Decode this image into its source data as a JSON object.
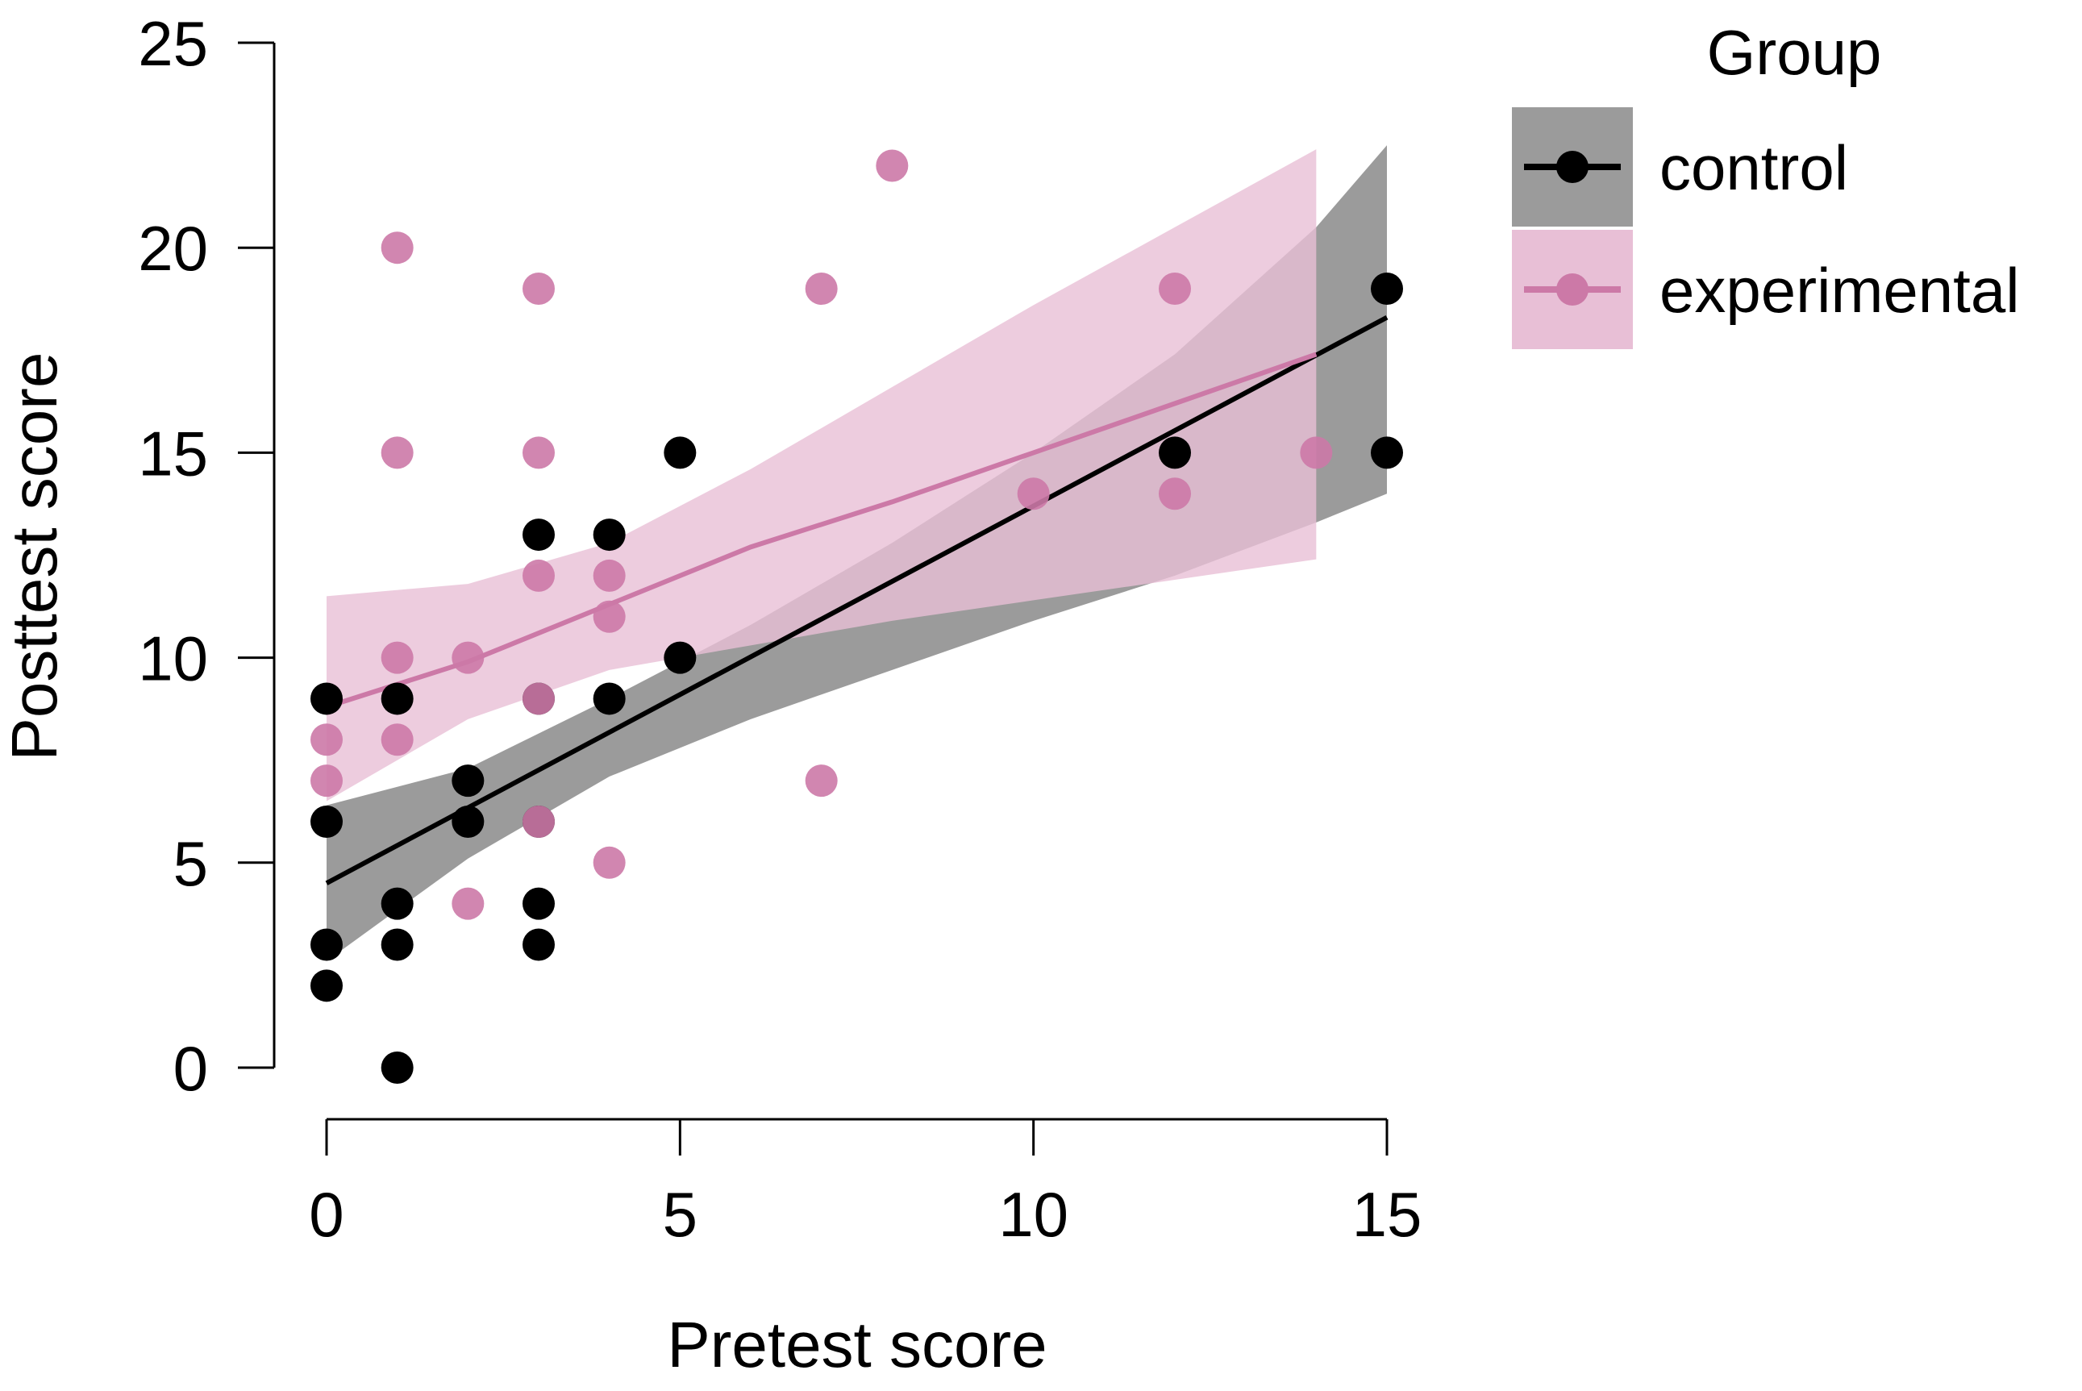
{
  "chart_data": {
    "type": "scatter",
    "xlabel": "Pretest score",
    "ylabel": "Posttest score",
    "xlim": [
      0,
      15
    ],
    "ylim": [
      0,
      25
    ],
    "x_ticks": [
      "0",
      "5",
      "10",
      "15"
    ],
    "y_ticks": [
      "0",
      "5",
      "10",
      "15",
      "20",
      "25"
    ],
    "grid": false,
    "legend": {
      "title": "Group",
      "position": "top-right outside",
      "entries": [
        "control",
        "experimental"
      ]
    },
    "series": [
      {
        "name": "control",
        "color": "#000000",
        "band_color": "#7a7a7a",
        "points": [
          [
            0,
            9
          ],
          [
            0,
            6
          ],
          [
            0,
            3
          ],
          [
            0,
            2
          ],
          [
            1,
            9
          ],
          [
            1,
            4
          ],
          [
            1,
            3
          ],
          [
            1,
            0
          ],
          [
            2,
            7
          ],
          [
            2,
            6
          ],
          [
            3,
            13
          ],
          [
            3,
            9
          ],
          [
            3,
            6
          ],
          [
            3,
            4
          ],
          [
            3,
            3
          ],
          [
            4,
            13
          ],
          [
            4,
            9
          ],
          [
            5,
            15
          ],
          [
            5,
            10
          ],
          [
            12,
            15
          ],
          [
            15,
            19
          ],
          [
            15,
            15
          ]
        ],
        "fit": {
          "x": [
            0,
            15
          ],
          "y": [
            4.5,
            18.3
          ]
        },
        "band": {
          "x": [
            0,
            2,
            4,
            6,
            8,
            10,
            12,
            14,
            15
          ],
          "lower": [
            2.6,
            5.1,
            7.1,
            8.5,
            9.7,
            10.9,
            12.0,
            13.3,
            14.0
          ],
          "upper": [
            6.4,
            7.3,
            9.0,
            10.8,
            12.8,
            15.0,
            17.4,
            20.5,
            22.5
          ]
        }
      },
      {
        "name": "experimental",
        "color": "#cc79a7",
        "band_color": "#e8bfd6",
        "points": [
          [
            0,
            8
          ],
          [
            0,
            7
          ],
          [
            1,
            20
          ],
          [
            1,
            15
          ],
          [
            1,
            10
          ],
          [
            1,
            8
          ],
          [
            2,
            10
          ],
          [
            2,
            4
          ],
          [
            3,
            19
          ],
          [
            3,
            15
          ],
          [
            3,
            12
          ],
          [
            3,
            9
          ],
          [
            3,
            6
          ],
          [
            4,
            12
          ],
          [
            4,
            11
          ],
          [
            4,
            5
          ],
          [
            7,
            19
          ],
          [
            7,
            7
          ],
          [
            8,
            22
          ],
          [
            10,
            14
          ],
          [
            12,
            19
          ],
          [
            12,
            14
          ],
          [
            14,
            15
          ]
        ],
        "fit": {
          "x": [
            0,
            2,
            4,
            6,
            8,
            10,
            12,
            14
          ],
          "y": [
            8.8,
            9.9,
            11.3,
            12.7,
            13.8,
            15.0,
            16.2,
            17.4
          ]
        },
        "band": {
          "x": [
            0,
            2,
            4,
            6,
            8,
            10,
            12,
            14
          ],
          "lower": [
            6.5,
            8.5,
            9.7,
            10.3,
            10.9,
            11.4,
            11.9,
            12.4
          ],
          "upper": [
            11.5,
            11.8,
            12.8,
            14.6,
            16.6,
            18.6,
            20.5,
            22.4
          ]
        }
      }
    ]
  }
}
